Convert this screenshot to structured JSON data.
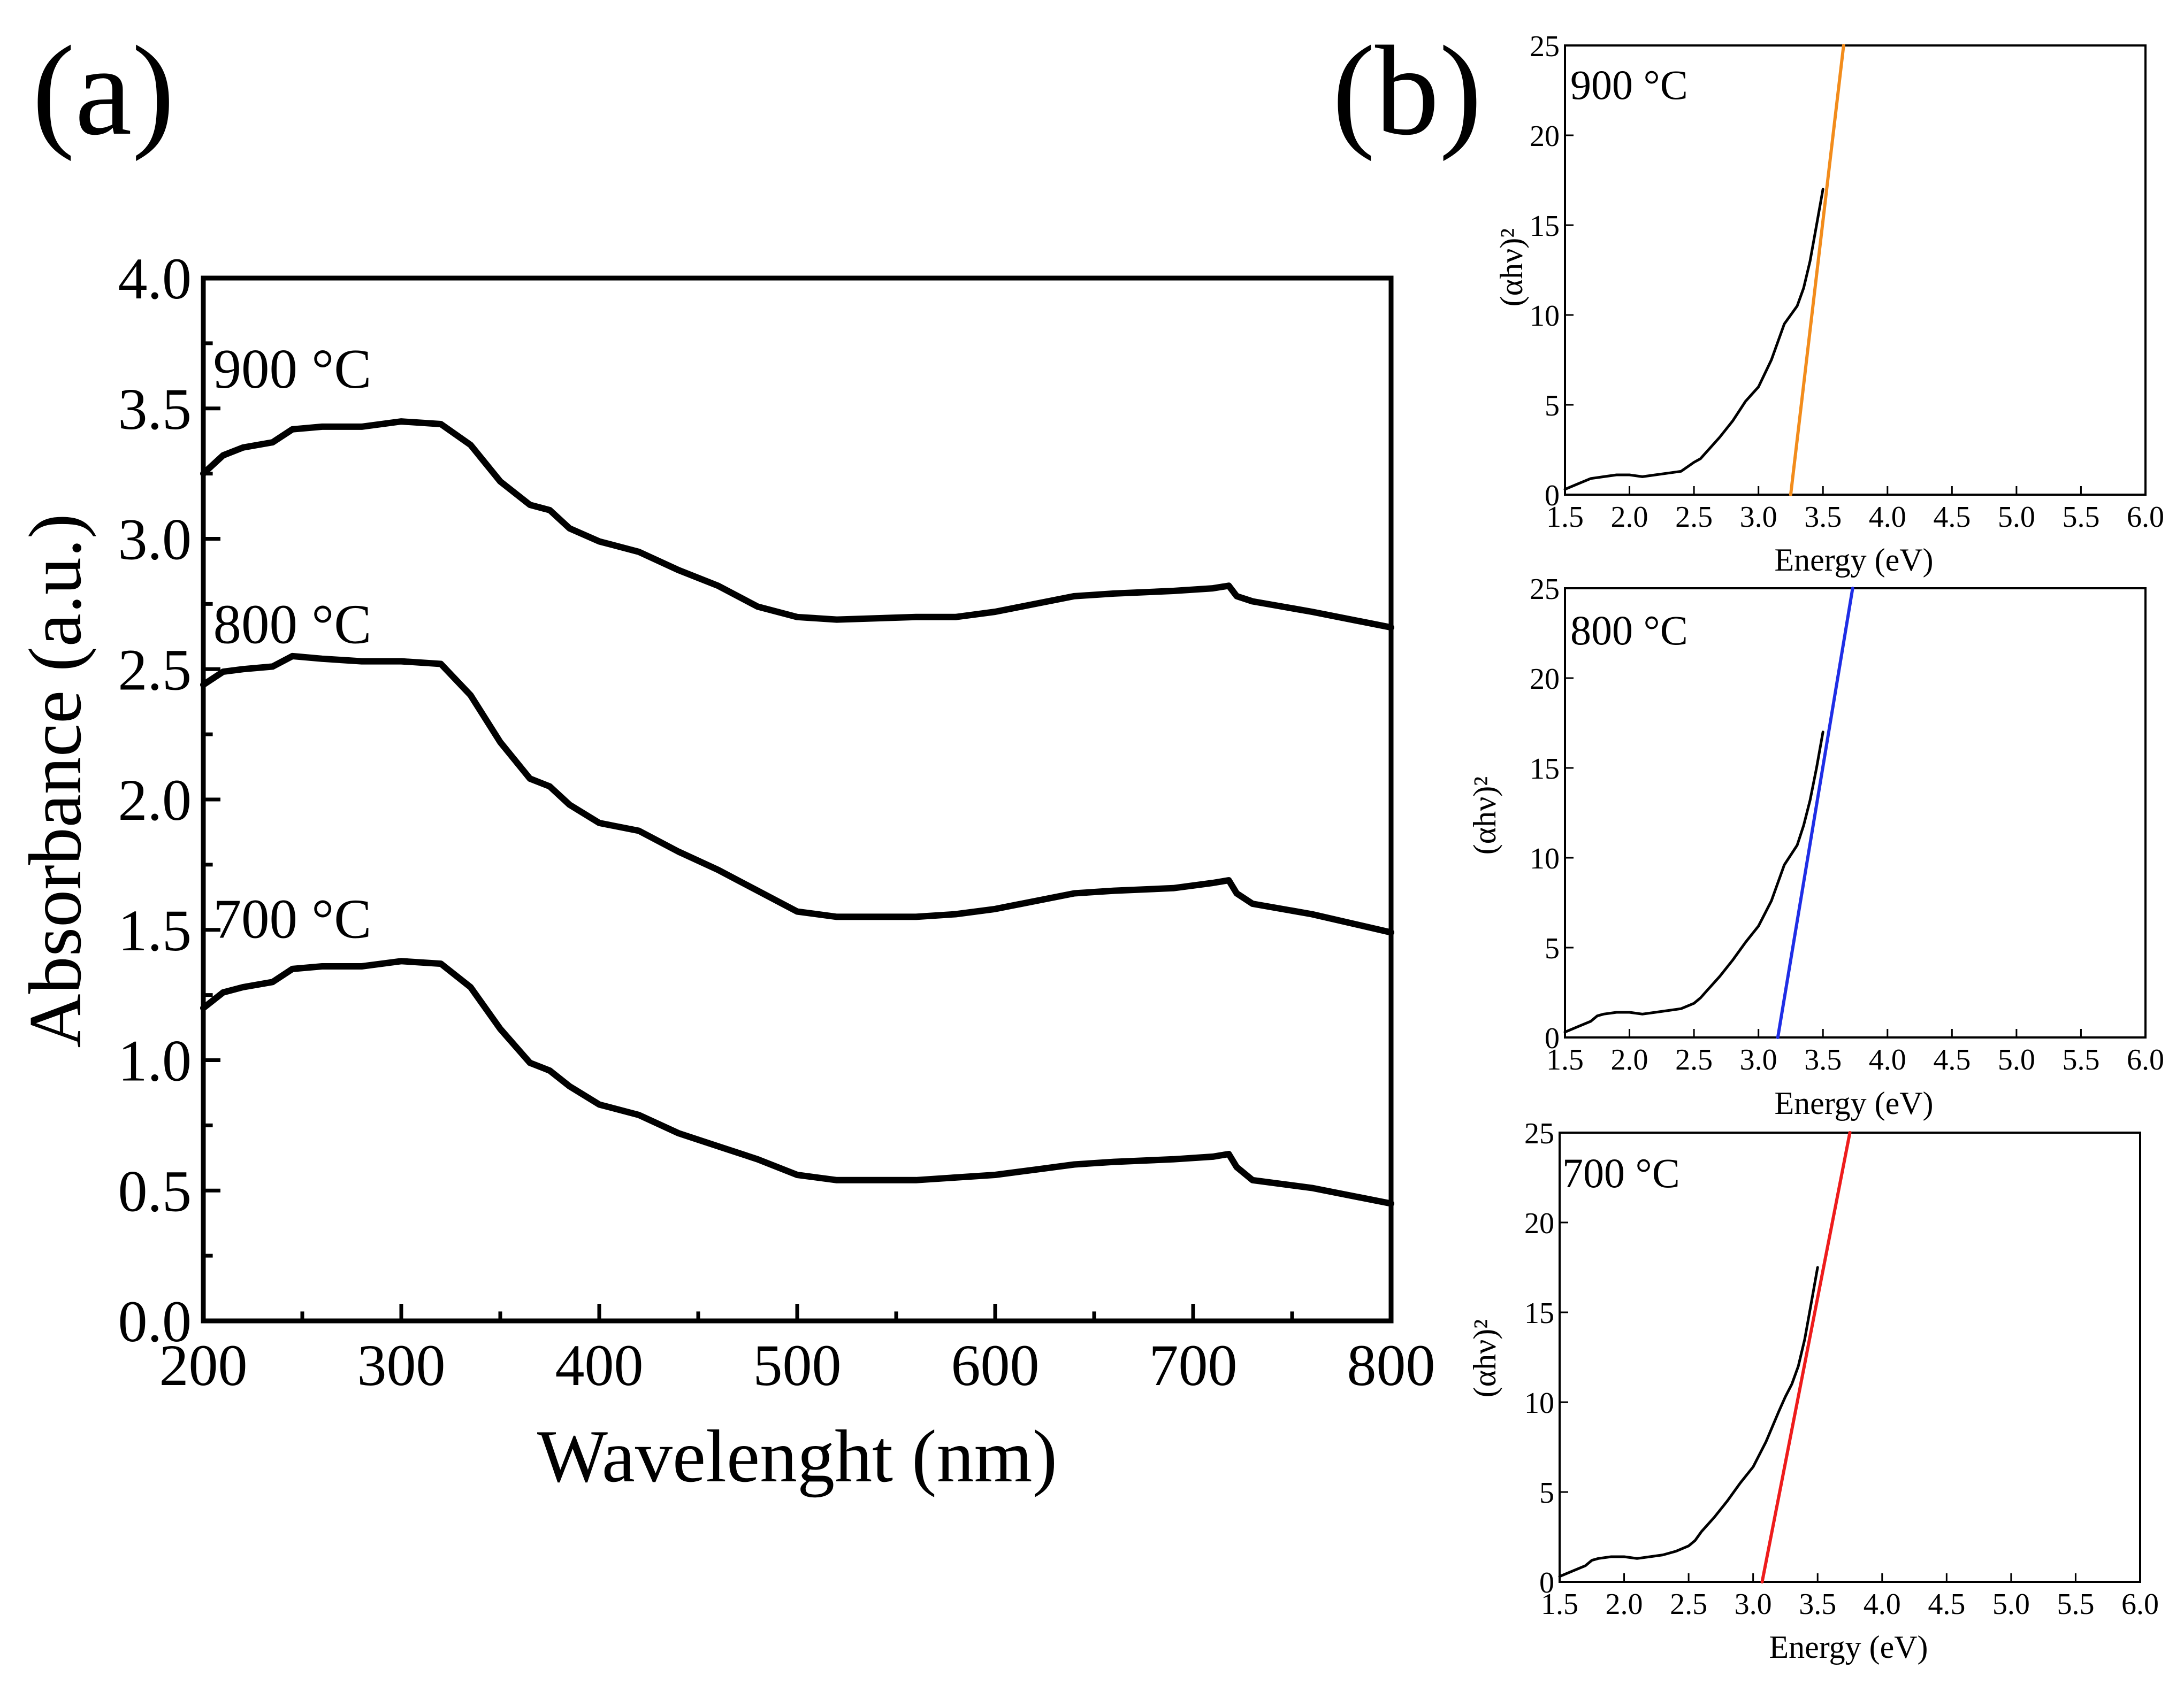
{
  "panel_labels": {
    "a": "(a)",
    "b": "(b)"
  },
  "chart_data": [
    {
      "id": "a",
      "type": "line",
      "title": "",
      "xlabel": "Wavelenght (nm)",
      "ylabel": "Absorbance (a.u.)",
      "xlim": [
        200,
        800
      ],
      "ylim": [
        0,
        4.0
      ],
      "xticks": [
        200,
        300,
        400,
        500,
        600,
        700,
        800
      ],
      "xtick_labels": [
        "200",
        "300",
        "400",
        "500",
        "600",
        "700",
        "800"
      ],
      "yticks": [
        0.0,
        0.5,
        1.0,
        1.5,
        2.0,
        2.5,
        3.0,
        3.5,
        4.0
      ],
      "ytick_labels": [
        "0.0",
        "0.5",
        "1.0",
        "1.5",
        "2.0",
        "2.5",
        "3.0",
        "3.5",
        "4.0"
      ],
      "series": [
        {
          "name": "900 °C",
          "label": "900 °C",
          "label_at": [
            205,
            3.58
          ],
          "color": "#000000",
          "x": [
            200,
            210,
            220,
            235,
            245,
            260,
            280,
            300,
            320,
            335,
            350,
            365,
            375,
            385,
            400,
            420,
            440,
            460,
            480,
            500,
            520,
            560,
            580,
            600,
            620,
            640,
            660,
            690,
            710,
            718,
            722,
            730,
            760,
            800
          ],
          "y": [
            3.25,
            3.32,
            3.35,
            3.37,
            3.42,
            3.43,
            3.43,
            3.45,
            3.44,
            3.36,
            3.22,
            3.13,
            3.11,
            3.04,
            2.99,
            2.95,
            2.88,
            2.82,
            2.74,
            2.7,
            2.69,
            2.7,
            2.7,
            2.72,
            2.75,
            2.78,
            2.79,
            2.8,
            2.81,
            2.82,
            2.78,
            2.76,
            2.72,
            2.66
          ]
        },
        {
          "name": "800 °C",
          "label": "800 °C",
          "label_at": [
            205,
            2.6
          ],
          "color": "#000000",
          "x": [
            200,
            210,
            220,
            235,
            245,
            260,
            280,
            300,
            320,
            335,
            350,
            365,
            375,
            385,
            400,
            420,
            440,
            460,
            480,
            500,
            520,
            560,
            580,
            600,
            620,
            640,
            660,
            690,
            710,
            718,
            722,
            730,
            760,
            800
          ],
          "y": [
            2.44,
            2.49,
            2.5,
            2.51,
            2.55,
            2.54,
            2.53,
            2.53,
            2.52,
            2.4,
            2.22,
            2.08,
            2.05,
            1.98,
            1.91,
            1.88,
            1.8,
            1.73,
            1.65,
            1.57,
            1.55,
            1.55,
            1.56,
            1.58,
            1.61,
            1.64,
            1.65,
            1.66,
            1.68,
            1.69,
            1.64,
            1.6,
            1.56,
            1.49
          ]
        },
        {
          "name": "700 °C",
          "label": "700 °C",
          "label_at": [
            205,
            1.47
          ],
          "color": "#000000",
          "x": [
            200,
            210,
            220,
            235,
            245,
            260,
            280,
            300,
            320,
            335,
            350,
            365,
            375,
            385,
            400,
            420,
            440,
            460,
            480,
            500,
            520,
            560,
            580,
            600,
            620,
            640,
            660,
            690,
            710,
            718,
            722,
            730,
            760,
            800
          ],
          "y": [
            1.2,
            1.26,
            1.28,
            1.3,
            1.35,
            1.36,
            1.36,
            1.38,
            1.37,
            1.28,
            1.12,
            0.99,
            0.96,
            0.9,
            0.83,
            0.79,
            0.72,
            0.67,
            0.62,
            0.56,
            0.54,
            0.54,
            0.55,
            0.56,
            0.58,
            0.6,
            0.61,
            0.62,
            0.63,
            0.64,
            0.59,
            0.54,
            0.51,
            0.45
          ]
        }
      ]
    },
    {
      "id": "b-900",
      "type": "line",
      "title": "",
      "annotation": "900 °C",
      "xlabel": "Energy (eV)",
      "ylabel": "(αhν)²",
      "xlim": [
        1.5,
        6.0
      ],
      "ylim": [
        0,
        25
      ],
      "xticks": [
        1.5,
        2.0,
        2.5,
        3.0,
        3.5,
        4.0,
        4.5,
        5.0,
        5.5,
        6.0
      ],
      "xtick_labels": [
        "1.5",
        "2.0",
        "2.5",
        "3.0",
        "3.5",
        "4.0",
        "4.5",
        "5.0",
        "5.5",
        "6.0"
      ],
      "yticks": [
        0,
        5,
        10,
        15,
        20,
        25
      ],
      "ytick_labels": [
        "0",
        "5",
        "10",
        "15",
        "20",
        "25"
      ],
      "series": [
        {
          "name": "data",
          "color": "#000000",
          "x": [
            1.5,
            1.6,
            1.7,
            1.8,
            1.9,
            2.0,
            2.1,
            2.2,
            2.3,
            2.4,
            2.5,
            2.55,
            2.6,
            2.7,
            2.8,
            2.9,
            3.0,
            3.1,
            3.2,
            3.3,
            3.35,
            3.4,
            3.45,
            3.5
          ],
          "y": [
            0.3,
            0.6,
            0.9,
            1.0,
            1.1,
            1.1,
            1.0,
            1.1,
            1.2,
            1.3,
            1.8,
            2.0,
            2.4,
            3.2,
            4.1,
            5.2,
            6.0,
            7.5,
            9.5,
            10.5,
            11.5,
            13.0,
            15.0,
            17.0
          ]
        },
        {
          "name": "linear fit",
          "color": "#f28c1c",
          "x": [
            3.25,
            3.66
          ],
          "y": [
            0,
            25
          ]
        }
      ]
    },
    {
      "id": "b-800",
      "type": "line",
      "title": "",
      "annotation": "800 °C",
      "xlabel": "Energy (eV)",
      "ylabel": "(αhν)²",
      "xlim": [
        1.5,
        6.0
      ],
      "ylim": [
        0,
        25
      ],
      "xticks": [
        1.5,
        2.0,
        2.5,
        3.0,
        3.5,
        4.0,
        4.5,
        5.0,
        5.5,
        6.0
      ],
      "xtick_labels": [
        "1.5",
        "2.0",
        "2.5",
        "3.0",
        "3.5",
        "4.0",
        "4.5",
        "5.0",
        "5.5",
        "6.0"
      ],
      "yticks": [
        0,
        5,
        10,
        15,
        20,
        25
      ],
      "ytick_labels": [
        "0",
        "5",
        "10",
        "15",
        "20",
        "25"
      ],
      "series": [
        {
          "name": "data",
          "color": "#000000",
          "x": [
            1.5,
            1.6,
            1.7,
            1.75,
            1.8,
            1.9,
            2.0,
            2.1,
            2.2,
            2.3,
            2.4,
            2.5,
            2.55,
            2.6,
            2.7,
            2.8,
            2.9,
            3.0,
            3.1,
            3.2,
            3.3,
            3.35,
            3.4,
            3.45,
            3.5
          ],
          "y": [
            0.3,
            0.6,
            0.9,
            1.2,
            1.3,
            1.4,
            1.4,
            1.3,
            1.4,
            1.5,
            1.6,
            1.9,
            2.2,
            2.6,
            3.4,
            4.3,
            5.3,
            6.2,
            7.6,
            9.6,
            10.7,
            11.8,
            13.2,
            15.0,
            17.0
          ]
        },
        {
          "name": "linear fit",
          "color": "#1f2ee6",
          "x": [
            3.15,
            3.73
          ],
          "y": [
            0,
            25
          ]
        }
      ]
    },
    {
      "id": "b-700",
      "type": "line",
      "title": "",
      "annotation": "700 °C",
      "xlabel": "Energy (eV)",
      "ylabel": "(αhν)²",
      "xlim": [
        1.5,
        6.0
      ],
      "ylim": [
        0,
        25
      ],
      "xticks": [
        1.5,
        2.0,
        2.5,
        3.0,
        3.5,
        4.0,
        4.5,
        5.0,
        5.5,
        6.0
      ],
      "xtick_labels": [
        "1.5",
        "2.0",
        "2.5",
        "3.0",
        "3.5",
        "4.0",
        "4.5",
        "5.0",
        "5.5",
        "6.0"
      ],
      "yticks": [
        0,
        5,
        10,
        15,
        20,
        25
      ],
      "ytick_labels": [
        "0",
        "5",
        "10",
        "15",
        "20",
        "25"
      ],
      "series": [
        {
          "name": "data",
          "color": "#000000",
          "x": [
            1.5,
            1.6,
            1.7,
            1.75,
            1.8,
            1.9,
            2.0,
            2.1,
            2.2,
            2.3,
            2.4,
            2.5,
            2.55,
            2.6,
            2.7,
            2.8,
            2.9,
            3.0,
            3.1,
            3.2,
            3.25,
            3.3,
            3.35,
            3.4,
            3.45,
            3.5
          ],
          "y": [
            0.3,
            0.6,
            0.9,
            1.2,
            1.3,
            1.4,
            1.4,
            1.3,
            1.4,
            1.5,
            1.7,
            2.0,
            2.3,
            2.8,
            3.6,
            4.5,
            5.5,
            6.4,
            7.8,
            9.5,
            10.3,
            11.0,
            12.0,
            13.5,
            15.5,
            17.5
          ]
        },
        {
          "name": "linear fit",
          "color": "#ee1c1c",
          "x": [
            3.07,
            3.75
          ],
          "y": [
            0,
            25
          ]
        }
      ]
    }
  ]
}
